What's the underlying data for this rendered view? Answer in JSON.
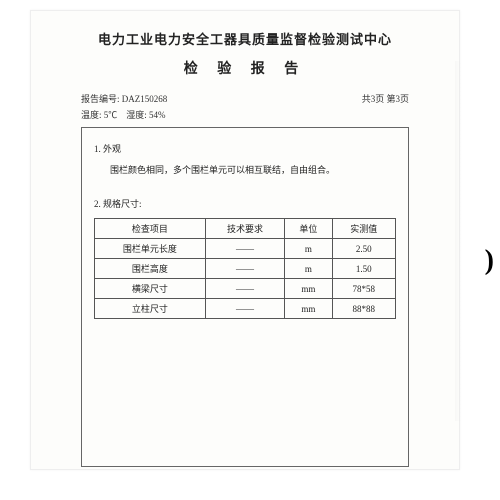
{
  "header": {
    "org_title": "电力工业电力安全工器具质量监督检验测试中心",
    "report_title": "检 验 报 告"
  },
  "meta": {
    "report_no_label": "报告编号:",
    "report_no": "DAZ150268",
    "page_info": "共3页  第3页",
    "temp_label": "温度:",
    "temp": "5℃",
    "humidity_label": "湿度:",
    "humidity": "54%"
  },
  "sections": {
    "s1_num": "1. 外观",
    "s1_body": "围栏颜色相同，多个围栏单元可以相互联结，自由组合。",
    "s2_num": "2. 规格尺寸:"
  },
  "table": {
    "headers": [
      "检查项目",
      "技术要求",
      "单位",
      "实测值"
    ],
    "rows": [
      [
        "围栏单元长度",
        "——",
        "m",
        "2.50"
      ],
      [
        "围栏高度",
        "——",
        "m",
        "1.50"
      ],
      [
        "横梁尺寸",
        "——",
        "mm",
        "78*58"
      ],
      [
        "立柱尺寸",
        "——",
        "mm",
        "88*88"
      ]
    ]
  },
  "decor": {
    "paren": ")"
  }
}
